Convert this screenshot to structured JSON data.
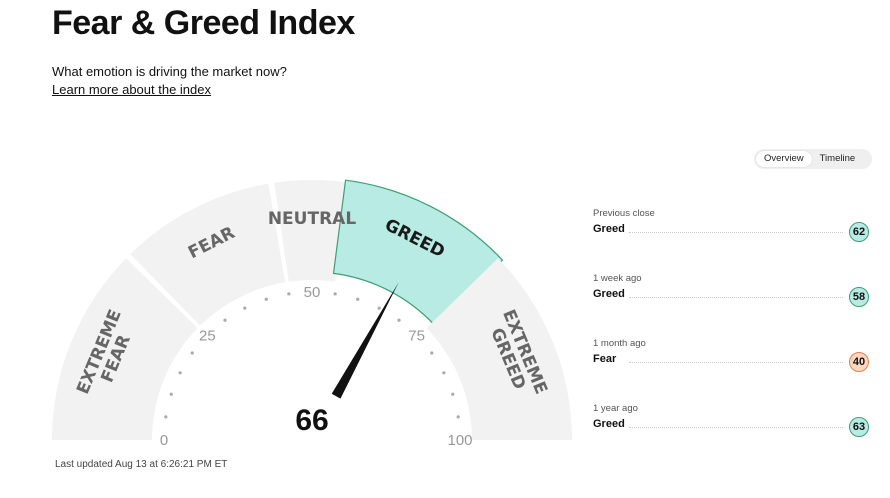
{
  "header": {
    "title": "Fear & Greed Index",
    "subtitle": "What emotion is driving the market now?",
    "learn_more": "Learn more about the index"
  },
  "toggle": {
    "overview": "Overview",
    "timeline": "Timeline",
    "active": "overview"
  },
  "gauge": {
    "value": 66,
    "value_label": "66",
    "segments": [
      {
        "label": [
          "EXTREME",
          "FEAR"
        ],
        "from": 0,
        "to": 25
      },
      {
        "label": [
          "FEAR"
        ],
        "from": 25,
        "to": 45
      },
      {
        "label": [
          "NEUTRAL"
        ],
        "from": 45,
        "to": 55
      },
      {
        "label": [
          "GREED"
        ],
        "from": 55,
        "to": 75
      },
      {
        "label": [
          "EXTREME",
          "GREED"
        ],
        "from": 75,
        "to": 100
      }
    ],
    "active_segment": 3,
    "scale_labels": [
      "0",
      "25",
      "50",
      "75",
      "100"
    ],
    "colors": {
      "segment": "#f2f2f2",
      "active_fill": "#b8ebe4",
      "active_stroke": "#3e9f73",
      "needle": "#111111"
    }
  },
  "last_updated": "Last updated Aug 13 at 6:26:21 PM ET",
  "history": [
    {
      "period": "Previous close",
      "rating": "Greed",
      "value": "62",
      "badge_bg": "#b8ebe4",
      "badge_border": "#3e9f73"
    },
    {
      "period": "1 week ago",
      "rating": "Greed",
      "value": "58",
      "badge_bg": "#b8ebe4",
      "badge_border": "#3e9f73"
    },
    {
      "period": "1 month ago",
      "rating": "Fear",
      "value": "40",
      "badge_bg": "#fcd6c0",
      "badge_border": "#e0834f"
    },
    {
      "period": "1 year ago",
      "rating": "Greed",
      "value": "63",
      "badge_bg": "#b8ebe4",
      "badge_border": "#3e9f73"
    }
  ]
}
